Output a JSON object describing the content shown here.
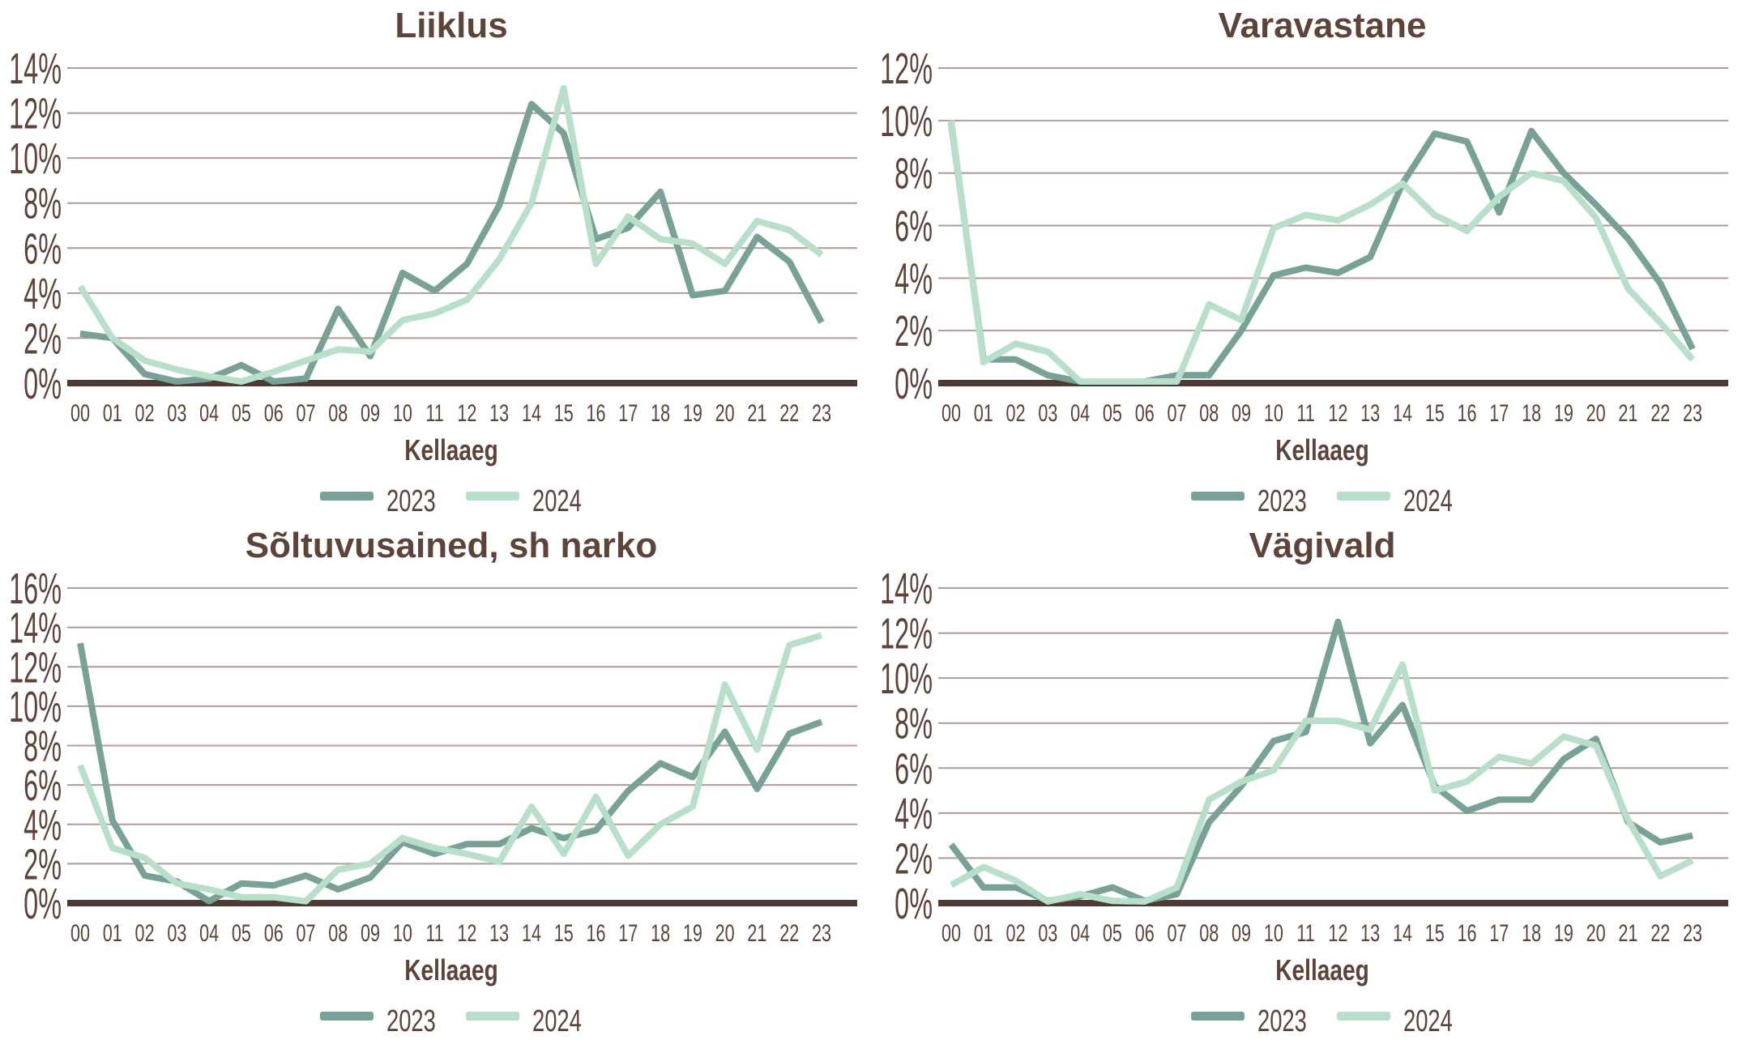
{
  "page": {
    "background": "#ffffff"
  },
  "colors": {
    "series_2023": "#78a198",
    "series_2024": "#b8dfc9",
    "text": "#5d4339",
    "gridline": "#b09c93",
    "axis_line": "#4e3a32"
  },
  "legend": {
    "items": [
      {
        "label": "2023",
        "color": "#78a198"
      },
      {
        "label": "2024",
        "color": "#b8dfc9"
      }
    ]
  },
  "tick_suffix": "%",
  "chart_data": [
    {
      "type": "line",
      "title": "Liiklus",
      "xlabel": "Kellaaeg",
      "ylabel": "",
      "ylim": [
        0,
        14
      ],
      "ytick_step": 2,
      "grid": true,
      "legend_position": "bottom",
      "categories": [
        "00",
        "01",
        "02",
        "03",
        "04",
        "05",
        "06",
        "07",
        "08",
        "09",
        "10",
        "11",
        "12",
        "13",
        "14",
        "15",
        "16",
        "17",
        "18",
        "19",
        "20",
        "21",
        "22",
        "23"
      ],
      "series": [
        {
          "name": "2023",
          "values": [
            2.2,
            2.0,
            0.4,
            0.0,
            0.2,
            0.8,
            0.0,
            0.2,
            3.3,
            1.2,
            4.9,
            4.1,
            5.3,
            7.9,
            12.4,
            11.1,
            6.4,
            6.9,
            8.5,
            3.9,
            4.1,
            6.5,
            5.4,
            2.7
          ]
        },
        {
          "name": "2024",
          "values": [
            4.3,
            2.0,
            1.0,
            0.6,
            0.3,
            0.0,
            0.5,
            1.0,
            1.5,
            1.4,
            2.8,
            3.1,
            3.7,
            5.5,
            8.0,
            13.1,
            5.3,
            7.4,
            6.4,
            6.2,
            5.3,
            7.2,
            6.8,
            5.7
          ]
        }
      ]
    },
    {
      "type": "line",
      "title": "Varavastane",
      "xlabel": "Kellaaeg",
      "ylabel": "",
      "ylim": [
        0,
        12
      ],
      "ytick_step": 2,
      "grid": true,
      "legend_position": "bottom",
      "categories": [
        "00",
        "01",
        "02",
        "03",
        "04",
        "05",
        "06",
        "07",
        "08",
        "09",
        "10",
        "11",
        "12",
        "13",
        "14",
        "15",
        "16",
        "17",
        "18",
        "19",
        "20",
        "21",
        "22",
        "23"
      ],
      "series": [
        {
          "name": "2023",
          "values": [
            9.9,
            0.9,
            0.9,
            0.3,
            0.0,
            0.0,
            0.0,
            0.3,
            0.3,
            2.0,
            4.1,
            4.4,
            4.2,
            4.8,
            7.6,
            9.5,
            9.2,
            6.5,
            9.6,
            8.0,
            6.8,
            5.5,
            3.8,
            1.3
          ]
        },
        {
          "name": "2024",
          "values": [
            10.0,
            0.8,
            1.5,
            1.2,
            0.0,
            0.0,
            0.0,
            0.0,
            3.0,
            2.4,
            5.9,
            6.4,
            6.2,
            6.8,
            7.6,
            6.4,
            5.8,
            7.1,
            8.0,
            7.7,
            6.3,
            3.6,
            2.3,
            0.9
          ]
        }
      ]
    },
    {
      "type": "line",
      "title": "Sõltuvusained, sh narko",
      "xlabel": "Kellaaeg",
      "ylabel": "",
      "ylim": [
        0,
        16
      ],
      "ytick_step": 2,
      "grid": true,
      "legend_position": "bottom",
      "categories": [
        "00",
        "01",
        "02",
        "03",
        "04",
        "05",
        "06",
        "07",
        "08",
        "09",
        "10",
        "11",
        "12",
        "13",
        "14",
        "15",
        "16",
        "17",
        "18",
        "19",
        "20",
        "21",
        "22",
        "23"
      ],
      "series": [
        {
          "name": "2023",
          "values": [
            13.2,
            4.2,
            1.4,
            1.1,
            0.1,
            1.0,
            0.9,
            1.4,
            0.7,
            1.3,
            3.1,
            2.5,
            3.0,
            3.0,
            3.8,
            3.3,
            3.7,
            5.7,
            7.1,
            6.4,
            8.7,
            5.8,
            8.6,
            9.2
          ]
        },
        {
          "name": "2024",
          "values": [
            7.0,
            2.8,
            2.3,
            1.0,
            0.7,
            0.3,
            0.3,
            0.1,
            1.7,
            2.0,
            3.3,
            2.8,
            2.5,
            2.1,
            4.9,
            2.5,
            5.4,
            2.4,
            4.0,
            4.9,
            11.1,
            7.8,
            13.1,
            13.6
          ]
        }
      ]
    },
    {
      "type": "line",
      "title": "Vägivald",
      "xlabel": "Kellaaeg",
      "ylabel": "",
      "ylim": [
        0,
        14
      ],
      "ytick_step": 2,
      "grid": true,
      "legend_position": "bottom",
      "categories": [
        "00",
        "01",
        "02",
        "03",
        "04",
        "05",
        "06",
        "07",
        "08",
        "09",
        "10",
        "11",
        "12",
        "13",
        "14",
        "15",
        "16",
        "17",
        "18",
        "19",
        "20",
        "21",
        "22",
        "23"
      ],
      "series": [
        {
          "name": "2023",
          "values": [
            2.6,
            0.7,
            0.7,
            0.1,
            0.3,
            0.7,
            0.1,
            0.4,
            3.6,
            5.2,
            7.2,
            7.6,
            12.5,
            7.1,
            8.8,
            5.2,
            4.1,
            4.6,
            4.6,
            6.4,
            7.3,
            3.6,
            2.7,
            3.0
          ]
        },
        {
          "name": "2024",
          "values": [
            0.8,
            1.6,
            1.0,
            0.0,
            0.4,
            0.1,
            0.0,
            0.7,
            4.6,
            5.4,
            5.9,
            8.1,
            8.1,
            7.7,
            10.6,
            5.0,
            5.4,
            6.5,
            6.2,
            7.4,
            7.0,
            3.7,
            1.2,
            1.9
          ]
        }
      ]
    }
  ]
}
